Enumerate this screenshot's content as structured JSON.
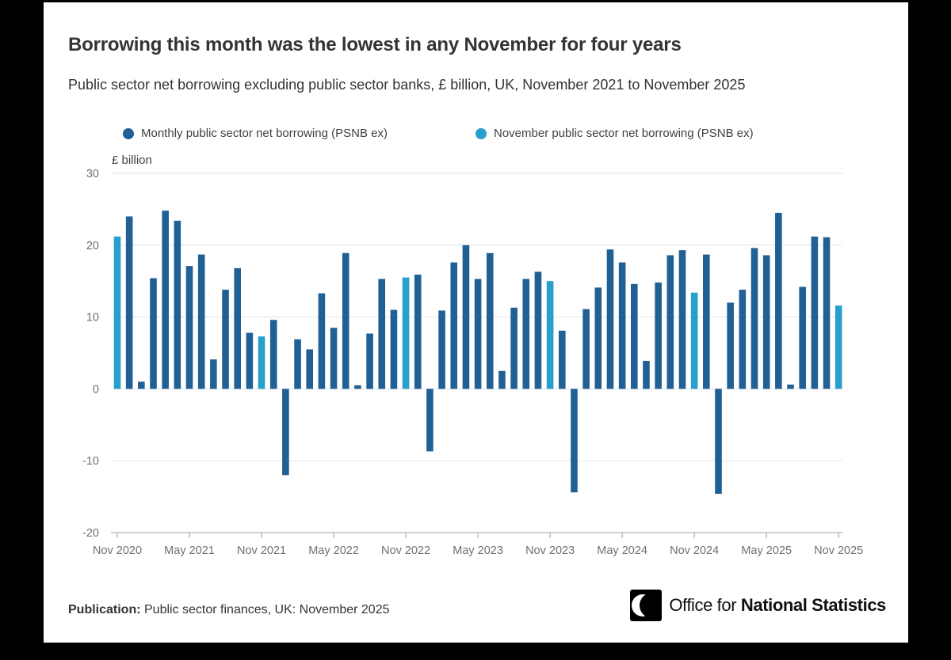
{
  "header": {
    "title": "Borrowing this month was the lowest in any November for four years",
    "subtitle": "Public sector net borrowing excluding public sector banks, £ billion, UK, November 2021 to November 2025"
  },
  "legend": [
    {
      "label": "Monthly public sector net borrowing (PSNB ex)",
      "color": "#206095"
    },
    {
      "label": "November public sector net borrowing (PSNB ex)",
      "color": "#27A0CC"
    }
  ],
  "colors": {
    "monthly_bar": "#206095",
    "november_bar": "#27A0CC",
    "gridline": "#e2e2e2",
    "axis_line": "#b3b3b3",
    "axis_text": "#707071",
    "title_text": "#333333",
    "frame": "#000000",
    "card": "#ffffff"
  },
  "chart_data": {
    "type": "bar",
    "title": "Borrowing this month was the lowest in any November for four years",
    "subtitle": "Public sector net borrowing excluding public sector banks, £ billion, UK, November 2021 to November 2025",
    "unit_label": "£ billion",
    "ylim": [
      -20,
      30
    ],
    "y_ticks": [
      30,
      20,
      10,
      0,
      -10,
      -20
    ],
    "x_tick_labels": [
      "Nov 2020",
      "May 2021",
      "Nov 2021",
      "May 2022",
      "Nov 2022",
      "May 2023",
      "Nov 2023",
      "May 2024",
      "Nov 2024",
      "May 2025",
      "Nov 2025"
    ],
    "x_tick_every_n_months": 6,
    "legend_position": "top",
    "grid": "horizontal",
    "highlight_rule": "November bars use the light blue series colour",
    "months": [
      "Nov 2020",
      "Dec 2020",
      "Jan 2021",
      "Feb 2021",
      "Mar 2021",
      "Apr 2021",
      "May 2021",
      "Jun 2021",
      "Jul 2021",
      "Aug 2021",
      "Sep 2021",
      "Oct 2021",
      "Nov 2021",
      "Dec 2021",
      "Jan 2022",
      "Feb 2022",
      "Mar 2022",
      "Apr 2022",
      "May 2022",
      "Jun 2022",
      "Jul 2022",
      "Aug 2022",
      "Sep 2022",
      "Oct 2022",
      "Nov 2022",
      "Dec 2022",
      "Jan 2023",
      "Feb 2023",
      "Mar 2023",
      "Apr 2023",
      "May 2023",
      "Jun 2023",
      "Jul 2023",
      "Aug 2023",
      "Sep 2023",
      "Oct 2023",
      "Nov 2023",
      "Dec 2023",
      "Jan 2024",
      "Feb 2024",
      "Mar 2024",
      "Apr 2024",
      "May 2024",
      "Jun 2024",
      "Jul 2024",
      "Aug 2024",
      "Sep 2024",
      "Oct 2024",
      "Nov 2024",
      "Dec 2024",
      "Jan 2025",
      "Feb 2025",
      "Mar 2025",
      "Apr 2025",
      "May 2025",
      "Jun 2025",
      "Jul 2025",
      "Aug 2025",
      "Sep 2025",
      "Oct 2025",
      "Nov 2025"
    ],
    "values": [
      21.2,
      24.0,
      1.0,
      15.4,
      24.8,
      23.4,
      17.1,
      18.7,
      4.1,
      13.8,
      16.8,
      7.8,
      7.3,
      9.6,
      -12.0,
      6.9,
      5.5,
      13.3,
      8.5,
      18.9,
      0.5,
      7.7,
      15.3,
      11.0,
      15.5,
      15.9,
      -8.7,
      10.9,
      17.6,
      20.0,
      15.3,
      18.9,
      2.5,
      11.3,
      15.3,
      16.3,
      15.0,
      8.1,
      -14.4,
      11.1,
      14.1,
      19.4,
      17.6,
      14.6,
      3.9,
      14.8,
      18.6,
      19.3,
      13.4,
      18.7,
      -14.6,
      12.0,
      13.8,
      19.6,
      18.6,
      24.5,
      0.6,
      14.2,
      21.2,
      21.1,
      11.6
    ]
  },
  "footer": {
    "publication_label": "Publication:",
    "publication_text": " Public sector finances, UK: November 2025",
    "logo_regular": "Office for ",
    "logo_bold": "National Statistics"
  }
}
